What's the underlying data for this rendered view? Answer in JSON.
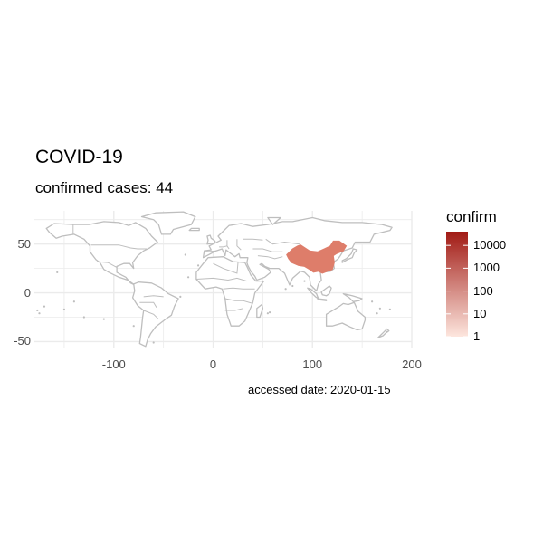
{
  "title": "COVID-19",
  "subtitle": "confirmed cases: 44",
  "caption": "accessed date: 2020-01-15",
  "legend": {
    "title": "confirm",
    "ticks": [
      "1",
      "10",
      "100",
      "1000",
      "10000"
    ],
    "color_low": "#fde6de",
    "color_high": "#a11a14"
  },
  "colors": {
    "background": "#ffffff",
    "grid": "#ebebeb",
    "border": "#bebebe",
    "land": "#ffffff",
    "highlight": "#de7d6a"
  },
  "chart_data": {
    "type": "choropleth",
    "title": "COVID-19",
    "subtitle": "confirmed cases: 44",
    "caption": "accessed date: 2020-01-15",
    "xlim": [
      -180,
      200
    ],
    "ylim": [
      -57,
      84
    ],
    "x_ticks": [
      -100,
      0,
      100,
      200
    ],
    "x_tick_labels": [
      "-100",
      "0",
      "100",
      "200"
    ],
    "y_ticks": [
      -50,
      0,
      50
    ],
    "y_tick_labels": [
      "-50",
      "0",
      "50"
    ],
    "fill_scale": "log10",
    "legend_title": "confirm",
    "regions": [
      {
        "name": "China",
        "confirm": 44
      }
    ]
  }
}
